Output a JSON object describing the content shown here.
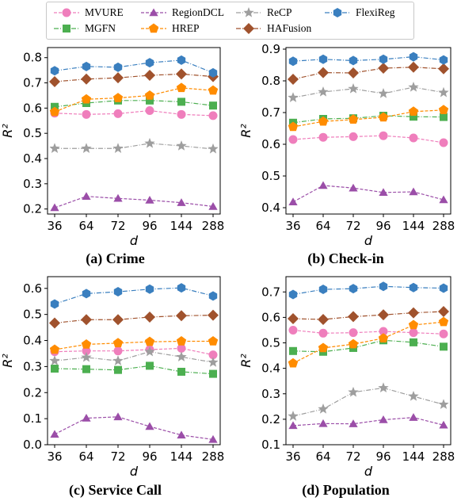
{
  "legend": [
    {
      "name": "MVURE",
      "color": "#ef7ebc",
      "marker": "circle",
      "dash": "4 2"
    },
    {
      "name": "MGFN",
      "color": "#4caf50",
      "marker": "square",
      "dash": "6 2 1 2"
    },
    {
      "name": "RegionDCL",
      "color": "#9b4ea8",
      "marker": "triangle",
      "dash": "4 2"
    },
    {
      "name": "HREP",
      "color": "#ff8c00",
      "marker": "pentagon",
      "dash": "4 2"
    },
    {
      "name": "ReCP",
      "color": "#9e9e9e",
      "marker": "star",
      "dash": "6 2 1 2"
    },
    {
      "name": "HAFusion",
      "color": "#a0522d",
      "marker": "diamond",
      "dash": "6 2 1 2"
    },
    {
      "name": "FlexiReg",
      "color": "#3a7fbf",
      "marker": "hexagon",
      "dash": "6 2 1 2"
    }
  ],
  "chart_data": [
    {
      "type": "line",
      "caption": "(a) Crime",
      "xlabel": "d",
      "ylabel": "R²",
      "categories": [
        "36",
        "64",
        "72",
        "96",
        "144",
        "288"
      ],
      "ylim": [
        0.18,
        0.84
      ],
      "yticks": [
        0.2,
        0.3,
        0.4,
        0.5,
        0.6,
        0.7,
        0.8
      ],
      "yticklabels": [
        "0.2",
        "0.3",
        "0.4",
        "0.5",
        "0.6",
        "0.7",
        "0.8"
      ],
      "series": [
        {
          "name": "MVURE",
          "values": [
            0.58,
            0.575,
            0.578,
            0.59,
            0.575,
            0.57
          ]
        },
        {
          "name": "MGFN",
          "values": [
            0.605,
            0.62,
            0.63,
            0.63,
            0.625,
            0.61
          ]
        },
        {
          "name": "RegionDCL",
          "values": [
            0.205,
            0.25,
            0.242,
            0.235,
            0.225,
            0.21
          ]
        },
        {
          "name": "HREP",
          "values": [
            0.585,
            0.635,
            0.64,
            0.65,
            0.68,
            0.67
          ]
        },
        {
          "name": "ReCP",
          "values": [
            0.44,
            0.44,
            0.44,
            0.46,
            0.45,
            0.438
          ]
        },
        {
          "name": "HAFusion",
          "values": [
            0.705,
            0.715,
            0.72,
            0.73,
            0.735,
            0.725
          ]
        },
        {
          "name": "FlexiReg",
          "values": [
            0.748,
            0.765,
            0.762,
            0.78,
            0.79,
            0.74
          ]
        }
      ]
    },
    {
      "type": "line",
      "caption": "(b) Check-in",
      "xlabel": "d",
      "ylabel": "R²",
      "categories": [
        "36",
        "64",
        "72",
        "96",
        "144",
        "288"
      ],
      "ylim": [
        0.38,
        0.905
      ],
      "yticks": [
        0.4,
        0.5,
        0.6,
        0.7,
        0.8,
        0.9
      ],
      "yticklabels": [
        "0.4",
        "0.5",
        "0.6",
        "0.7",
        "0.8",
        "0.9"
      ],
      "series": [
        {
          "name": "MVURE",
          "values": [
            0.615,
            0.622,
            0.624,
            0.627,
            0.62,
            0.605
          ]
        },
        {
          "name": "MGFN",
          "values": [
            0.668,
            0.68,
            0.682,
            0.69,
            0.687,
            0.686
          ]
        },
        {
          "name": "RegionDCL",
          "values": [
            0.418,
            0.47,
            0.462,
            0.448,
            0.45,
            0.425
          ]
        },
        {
          "name": "HREP",
          "values": [
            0.655,
            0.672,
            0.678,
            0.685,
            0.703,
            0.708
          ]
        },
        {
          "name": "ReCP",
          "values": [
            0.747,
            0.765,
            0.775,
            0.76,
            0.78,
            0.763
          ]
        },
        {
          "name": "HAFusion",
          "values": [
            0.805,
            0.826,
            0.825,
            0.84,
            0.843,
            0.838
          ]
        },
        {
          "name": "FlexiReg",
          "values": [
            0.862,
            0.868,
            0.864,
            0.868,
            0.876,
            0.866
          ]
        }
      ]
    },
    {
      "type": "line",
      "caption": "(c) Service Call",
      "xlabel": "d",
      "ylabel": "R²",
      "categories": [
        "36",
        "64",
        "72",
        "96",
        "144",
        "288"
      ],
      "ylim": [
        0.0,
        0.645
      ],
      "yticks": [
        0.0,
        0.1,
        0.2,
        0.3,
        0.4,
        0.5,
        0.6
      ],
      "yticklabels": [
        "0.0",
        "0.1",
        "0.2",
        "0.3",
        "0.4",
        "0.5",
        "0.6"
      ],
      "series": [
        {
          "name": "MVURE",
          "values": [
            0.357,
            0.36,
            0.36,
            0.365,
            0.37,
            0.345
          ]
        },
        {
          "name": "MGFN",
          "values": [
            0.292,
            0.29,
            0.287,
            0.303,
            0.28,
            0.272
          ]
        },
        {
          "name": "RegionDCL",
          "values": [
            0.04,
            0.102,
            0.107,
            0.07,
            0.037,
            0.02
          ]
        },
        {
          "name": "HREP",
          "values": [
            0.365,
            0.385,
            0.39,
            0.395,
            0.397,
            0.397
          ]
        },
        {
          "name": "ReCP",
          "values": [
            0.322,
            0.335,
            0.322,
            0.357,
            0.337,
            0.316
          ]
        },
        {
          "name": "HAFusion",
          "values": [
            0.467,
            0.48,
            0.48,
            0.49,
            0.495,
            0.497
          ]
        },
        {
          "name": "FlexiReg",
          "values": [
            0.54,
            0.58,
            0.587,
            0.597,
            0.602,
            0.571
          ]
        }
      ]
    },
    {
      "type": "line",
      "caption": "(d) Population",
      "xlabel": "d",
      "ylabel": "R²",
      "categories": [
        "36",
        "64",
        "72",
        "96",
        "144",
        "288"
      ],
      "ylim": [
        0.1,
        0.76
      ],
      "yticks": [
        0.1,
        0.2,
        0.3,
        0.4,
        0.5,
        0.6,
        0.7
      ],
      "yticklabels": [
        "0.1",
        "0.2",
        "0.3",
        "0.4",
        "0.5",
        "0.6",
        "0.7"
      ],
      "series": [
        {
          "name": "MVURE",
          "values": [
            0.55,
            0.538,
            0.54,
            0.545,
            0.54,
            0.535
          ]
        },
        {
          "name": "MGFN",
          "values": [
            0.468,
            0.465,
            0.48,
            0.51,
            0.502,
            0.485
          ]
        },
        {
          "name": "RegionDCL",
          "values": [
            0.175,
            0.183,
            0.182,
            0.198,
            0.207,
            0.177
          ]
        },
        {
          "name": "HREP",
          "values": [
            0.42,
            0.48,
            0.495,
            0.518,
            0.57,
            0.582
          ]
        },
        {
          "name": "ReCP",
          "values": [
            0.212,
            0.24,
            0.306,
            0.323,
            0.29,
            0.258
          ]
        },
        {
          "name": "HAFusion",
          "values": [
            0.595,
            0.592,
            0.603,
            0.61,
            0.618,
            0.623
          ]
        },
        {
          "name": "FlexiReg",
          "values": [
            0.69,
            0.71,
            0.713,
            0.722,
            0.717,
            0.715
          ]
        }
      ]
    }
  ]
}
